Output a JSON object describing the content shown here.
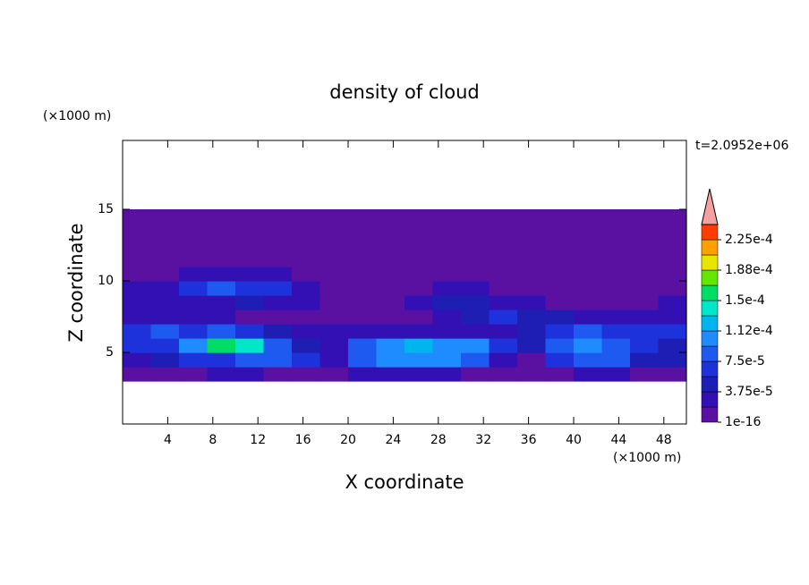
{
  "chart_data": {
    "type": "contour",
    "title": "density of cloud",
    "x_label": "X coordinate",
    "y_label": "Z coordinate",
    "x_unit": "(×1000 m)",
    "y_unit": "(×1000 m)",
    "time_label": "t=2.0952e+06",
    "xlim": [
      0,
      50
    ],
    "ylim": [
      0,
      20
    ],
    "xticks": [
      4,
      8,
      12,
      16,
      20,
      24,
      28,
      32,
      36,
      40,
      44,
      48
    ],
    "yticks": [
      5,
      10,
      15
    ],
    "x": [
      1.25,
      3.75,
      6.25,
      8.75,
      11.25,
      13.75,
      16.25,
      18.75,
      21.25,
      23.75,
      26.25,
      28.75,
      31.25,
      33.75,
      36.25,
      38.75,
      41.25,
      43.75,
      46.25,
      48.75
    ],
    "y": [
      3.5,
      4.5,
      5.5,
      6.5,
      7.5,
      8.5,
      9.5,
      10.5,
      11.5,
      12.5,
      13.5,
      14.5
    ],
    "z": [
      [
        5e-06,
        5e-06,
        5e-06,
        2e-05,
        2e-05,
        5e-06,
        5e-06,
        5e-06,
        2e-05,
        2e-05,
        2e-05,
        2e-05,
        5e-06,
        5e-06,
        5e-06,
        5e-06,
        2e-05,
        2e-05,
        5e-06,
        5e-06
      ],
      [
        3e-05,
        4e-05,
        6e-05,
        7e-05,
        8e-05,
        8e-05,
        6e-05,
        2e-05,
        9e-05,
        0.0001,
        0.00011,
        0.0001,
        9e-05,
        2e-05,
        1e-05,
        7e-05,
        9e-05,
        8e-05,
        5e-05,
        4e-05
      ],
      [
        6e-05,
        7e-05,
        0.0001,
        0.00016,
        0.00014,
        8e-05,
        5e-05,
        3e-05,
        9e-05,
        0.00011,
        0.00012,
        0.00011,
        0.0001,
        6e-05,
        4e-05,
        8e-05,
        0.0001,
        9e-05,
        6e-05,
        5e-05
      ],
      [
        7e-05,
        8e-05,
        7e-05,
        8e-05,
        6e-05,
        4e-05,
        3e-05,
        2e-05,
        2e-05,
        3e-05,
        3e-05,
        2e-05,
        2e-05,
        3e-05,
        5e-05,
        7e-05,
        8e-05,
        7e-05,
        7e-05,
        6e-05
      ],
      [
        3e-05,
        2e-05,
        2e-05,
        2e-05,
        1e-05,
        1e-05,
        1e-05,
        1e-05,
        1e-05,
        1e-05,
        1e-05,
        3e-05,
        5e-05,
        6e-05,
        5e-05,
        4e-05,
        3e-05,
        2e-05,
        2e-05,
        2e-05
      ],
      [
        2e-05,
        2e-05,
        3e-05,
        3e-05,
        4e-05,
        3e-05,
        2e-05,
        1e-05,
        1e-05,
        1e-05,
        2e-05,
        4e-05,
        5e-05,
        3e-05,
        2e-05,
        1e-05,
        1e-05,
        5e-06,
        1e-05,
        2e-05
      ],
      [
        2e-05,
        3e-05,
        7e-05,
        8e-05,
        7e-05,
        6e-05,
        3e-05,
        1e-05,
        5e-06,
        5e-06,
        5e-06,
        2e-05,
        3e-05,
        1e-05,
        5e-06,
        5e-06,
        5e-06,
        5e-06,
        5e-06,
        1e-05
      ],
      [
        5e-06,
        1e-05,
        2e-05,
        2e-05,
        2e-05,
        2e-05,
        1e-05,
        5e-06,
        5e-06,
        5e-06,
        5e-06,
        5e-06,
        5e-06,
        5e-06,
        5e-06,
        5e-06,
        5e-06,
        5e-06,
        5e-06,
        5e-06
      ],
      [
        5e-06,
        5e-06,
        5e-06,
        5e-06,
        5e-06,
        5e-06,
        5e-06,
        5e-06,
        5e-06,
        5e-06,
        5e-06,
        5e-06,
        5e-06,
        5e-06,
        5e-06,
        5e-06,
        5e-06,
        5e-06,
        5e-06,
        5e-06
      ],
      [
        5e-06,
        5e-06,
        5e-06,
        5e-06,
        5e-06,
        5e-06,
        5e-06,
        5e-06,
        5e-06,
        5e-06,
        5e-06,
        5e-06,
        5e-06,
        5e-06,
        5e-06,
        5e-06,
        5e-06,
        5e-06,
        5e-06,
        5e-06
      ],
      [
        5e-06,
        5e-06,
        5e-06,
        5e-06,
        5e-06,
        5e-06,
        5e-06,
        5e-06,
        5e-06,
        5e-06,
        5e-06,
        5e-06,
        5e-06,
        5e-06,
        5e-06,
        5e-06,
        5e-06,
        5e-06,
        5e-06,
        5e-06
      ],
      [
        5e-06,
        5e-06,
        5e-06,
        5e-06,
        5e-06,
        5e-06,
        5e-06,
        5e-06,
        5e-06,
        5e-06,
        5e-06,
        5e-06,
        5e-06,
        5e-06,
        5e-06,
        5e-06,
        5e-06,
        5e-06,
        5e-06,
        5e-06
      ]
    ],
    "levels": [
      1e-16,
      1.875e-05,
      3.75e-05,
      5.625e-05,
      7.5e-05,
      9.375e-05,
      0.0001125,
      0.00013125,
      0.00015,
      0.00016875,
      0.0001875,
      0.00020625,
      0.000225,
      0.00024375
    ],
    "colors": [
      "#5a10a0",
      "#3210b4",
      "#1e1eb4",
      "#1e32dc",
      "#1e5af0",
      "#1e8cff",
      "#00b4f0",
      "#00e6c8",
      "#00dc64",
      "#64e600",
      "#e6e600",
      "#ffa000",
      "#ff3c00"
    ],
    "overflow_color": "#f4a0a0",
    "colorbar_ticks": [
      {
        "value": 1e-16,
        "label": "1e-16"
      },
      {
        "value": 3.75e-05,
        "label": "3.75e-5"
      },
      {
        "value": 7.5e-05,
        "label": "7.5e-5"
      },
      {
        "value": 0.0001125,
        "label": "1.12e-4"
      },
      {
        "value": 0.00015,
        "label": "1.5e-4"
      },
      {
        "value": 0.0001875,
        "label": "1.88e-4"
      },
      {
        "value": 0.000225,
        "label": "2.25e-4"
      }
    ]
  }
}
